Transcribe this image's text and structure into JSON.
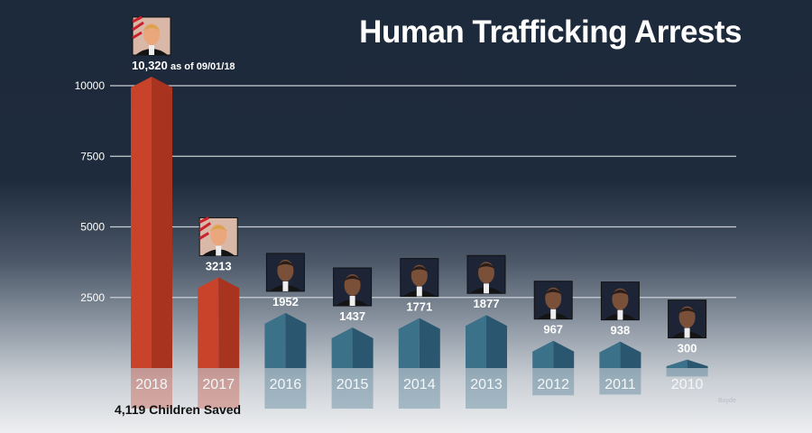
{
  "chart_data": {
    "type": "bar",
    "title": "Human Trafficking Arrests",
    "categories": [
      "2018",
      "2017",
      "2016",
      "2015",
      "2014",
      "2013",
      "2012",
      "2011",
      "2010"
    ],
    "values": [
      10320,
      3213,
      1952,
      1437,
      1771,
      1877,
      967,
      938,
      300
    ],
    "data_labels": [
      "10,320",
      "3213",
      "1952",
      "1437",
      "1771",
      "1877",
      "967",
      "938",
      "300"
    ],
    "label_note": "as of 09/01/18",
    "yticks": [
      2500,
      5000,
      7500,
      10000
    ],
    "ytick_labels": [
      "2500",
      "5000",
      "7500",
      "10000"
    ],
    "ylim": [
      0,
      10500
    ],
    "grid": true,
    "bar_colors": [
      "#c9432b",
      "#c9432b",
      "#3b7189",
      "#3b7189",
      "#3b7189",
      "#3b7189",
      "#3b7189",
      "#3b7189",
      "#3b7189"
    ],
    "portrait_icons": [
      "trump-portrait",
      "trump-portrait",
      "obama-portrait",
      "obama-portrait",
      "obama-portrait",
      "obama-portrait",
      "obama-portrait",
      "obama-portrait",
      "obama-portrait"
    ]
  },
  "footnote": "4,119 Children Saved",
  "watermark": "Boyde"
}
